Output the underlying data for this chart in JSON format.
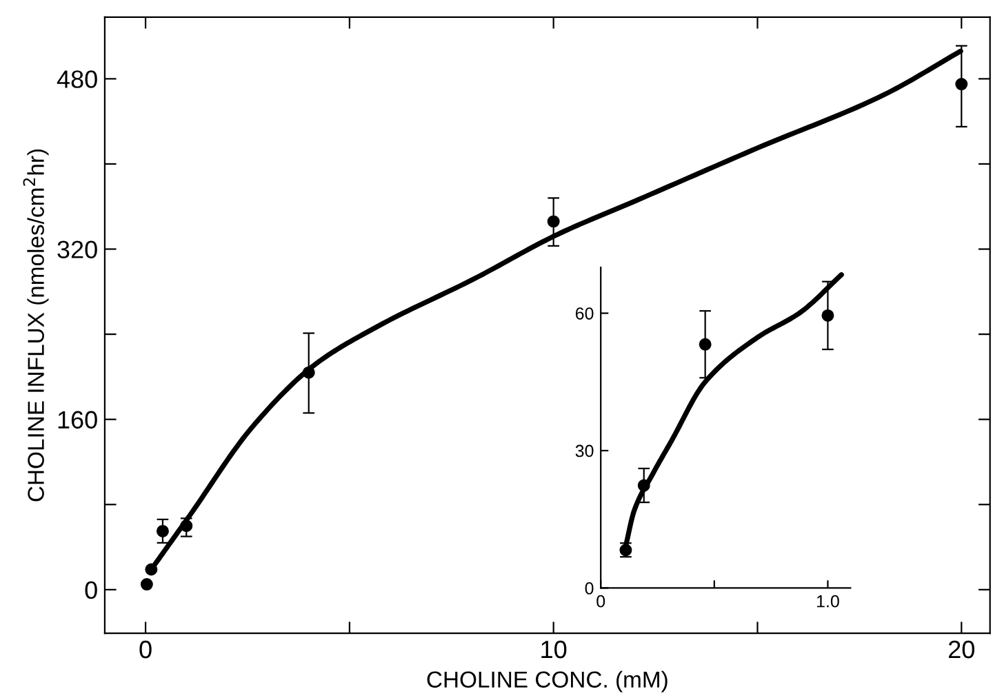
{
  "chart_data": [
    {
      "type": "scatter",
      "xlabel": "CHOLINE CONC. (mM)",
      "ylabel": "CHOLINE INFLUX (nmoles/cm$^{2}$hr)",
      "xlim": [
        -1,
        20.7
      ],
      "ylim": [
        -41,
        538
      ],
      "xticks": [
        0,
        {
          "value": 5,
          "label": null
        },
        10,
        {
          "value": 15,
          "label": null
        },
        20
      ],
      "yticks": [
        0,
        {
          "value": 80,
          "label": null
        },
        160,
        {
          "value": 240,
          "label": null
        },
        320,
        {
          "value": 400,
          "label": null
        },
        480
      ],
      "grid": false,
      "legend": false,
      "series": [
        {
          "color": "#000000",
          "marker": "circle",
          "x": [
            0.03,
            0.14,
            0.42,
            1.0,
            4.0,
            10.0,
            20.0
          ],
          "values": [
            5,
            19,
            55,
            60,
            204,
            346,
            475
          ],
          "errors": [
            null,
            null,
            [
              44,
              66
            ],
            [
              50,
              67
            ],
            [
              166,
              241
            ],
            [
              323,
              368
            ],
            [
              435,
              511
            ]
          ]
        },
        {
          "type": "line",
          "color": "#000000",
          "marker": "none",
          "line_style": "solid",
          "x": [
            0.14,
            1.07,
            2.62,
            4.17,
            5.72,
            8.05,
            10.11,
            11.93,
            15.0,
            18.1,
            19.98
          ],
          "values": [
            19,
            69,
            153,
            212,
            248,
            292,
            334,
            364,
            415,
            465,
            506
          ]
        }
      ]
    },
    {
      "type": "scatter",
      "xlim": [
        0,
        1.1
      ],
      "ylim": [
        0,
        70
      ],
      "xticks": [
        0,
        {
          "value": 0.5,
          "label": null
        },
        {
          "value": 1.0,
          "label": "1.0"
        }
      ],
      "yticks": [
        0,
        30,
        60
      ],
      "grid": false,
      "legend": false,
      "series": [
        {
          "color": "#000000",
          "marker": "circle",
          "x": [
            0.11,
            0.19,
            0.46,
            1.0
          ],
          "values": [
            8.3,
            22.4,
            53.2,
            59.5
          ],
          "errors": [
            1.5,
            3.7,
            7.3,
            7.4
          ]
        },
        {
          "type": "line",
          "color": "#000000",
          "marker": "none",
          "line_style": "solid",
          "x": [
            0.107,
            0.148,
            0.23,
            0.31,
            0.46,
            0.69,
            0.88,
            1.06
          ],
          "values": [
            8.5,
            17,
            25,
            32,
            45,
            54.7,
            60.2,
            68.4
          ]
        }
      ]
    }
  ]
}
